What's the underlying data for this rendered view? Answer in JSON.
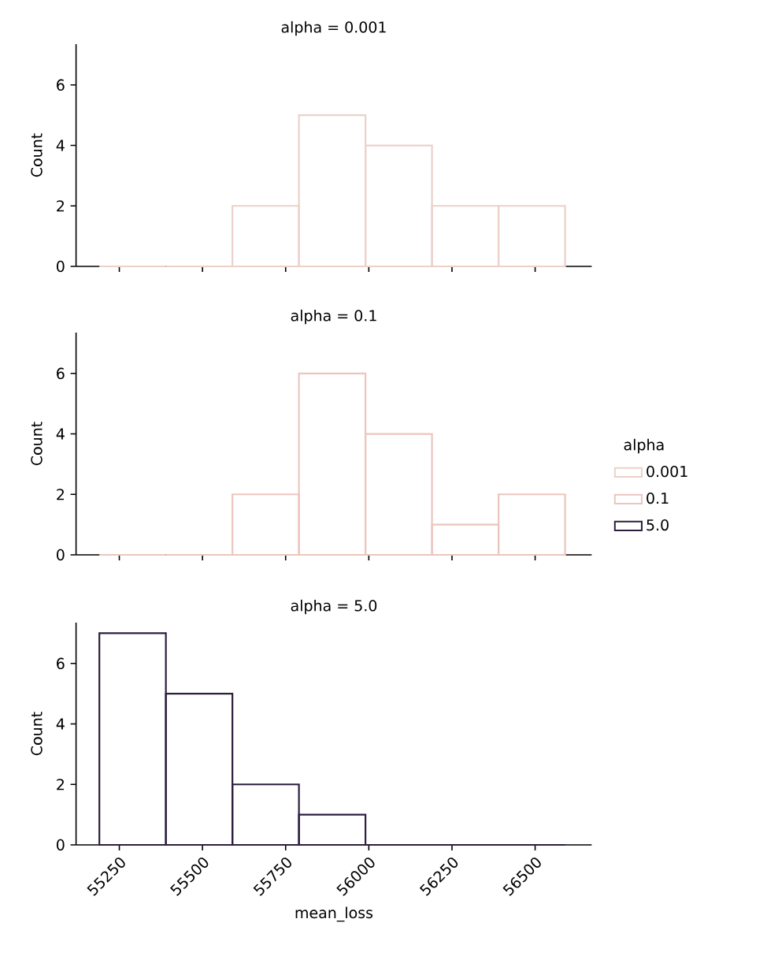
{
  "chart_data": [
    {
      "type": "histogram",
      "title": "alpha = 0.001",
      "ylabel": "Count",
      "bins": [
        55190,
        55390,
        55590,
        55790,
        55990,
        56190,
        56390,
        56590
      ],
      "series": [
        {
          "name": "0.001",
          "color": "#ecd1c9",
          "values": [
            0,
            0,
            2,
            5,
            4,
            2,
            2
          ]
        }
      ],
      "xlim": [
        55120,
        56670
      ],
      "ylim": [
        0,
        7.35
      ],
      "xticks": [
        {
          "value": 55250,
          "label": null
        },
        {
          "value": 55500,
          "label": null
        },
        {
          "value": 55750,
          "label": null
        },
        {
          "value": 56000,
          "label": null
        },
        {
          "value": 56250,
          "label": null
        },
        {
          "value": 56500,
          "label": null
        }
      ],
      "yticks": [
        0,
        2,
        4,
        6
      ],
      "tick_labels": "y",
      "legend": "right",
      "legend_title": "alpha"
    },
    {
      "type": "histogram",
      "title": "alpha = 0.1",
      "ylabel": "Count",
      "bins": [
        55190,
        55390,
        55590,
        55790,
        55990,
        56190,
        56390,
        56590
      ],
      "series": [
        {
          "name": "0.1",
          "color": "#ebc6be",
          "values": [
            0,
            0,
            2,
            6,
            4,
            1,
            2
          ]
        }
      ],
      "xlim": [
        55120,
        56670
      ],
      "ylim": [
        0,
        7.35
      ],
      "xticks": [
        {
          "value": 55250,
          "label": null
        },
        {
          "value": 55500,
          "label": null
        },
        {
          "value": 55750,
          "label": null
        },
        {
          "value": 56000,
          "label": null
        },
        {
          "value": 56250,
          "label": null
        },
        {
          "value": 56500,
          "label": null
        }
      ],
      "yticks": [
        0,
        2,
        4,
        6
      ],
      "tick_labels": "y",
      "legend": "right"
    },
    {
      "type": "histogram",
      "title": "alpha = 5.0",
      "xlabel": "mean_loss",
      "ylabel": "Count",
      "bins": [
        55190,
        55390,
        55590,
        55790,
        55990,
        56190,
        56390,
        56590
      ],
      "series": [
        {
          "name": "5.0",
          "color": "#2d1e3e",
          "values": [
            7,
            5,
            2,
            1,
            0,
            0,
            0
          ]
        }
      ],
      "xlim": [
        55120,
        56670
      ],
      "ylim": [
        0,
        7.35
      ],
      "xticks": [
        55250,
        55500,
        55750,
        56000,
        56250,
        56500
      ],
      "yticks": [
        0,
        2,
        4,
        6
      ],
      "legend": "right"
    }
  ]
}
